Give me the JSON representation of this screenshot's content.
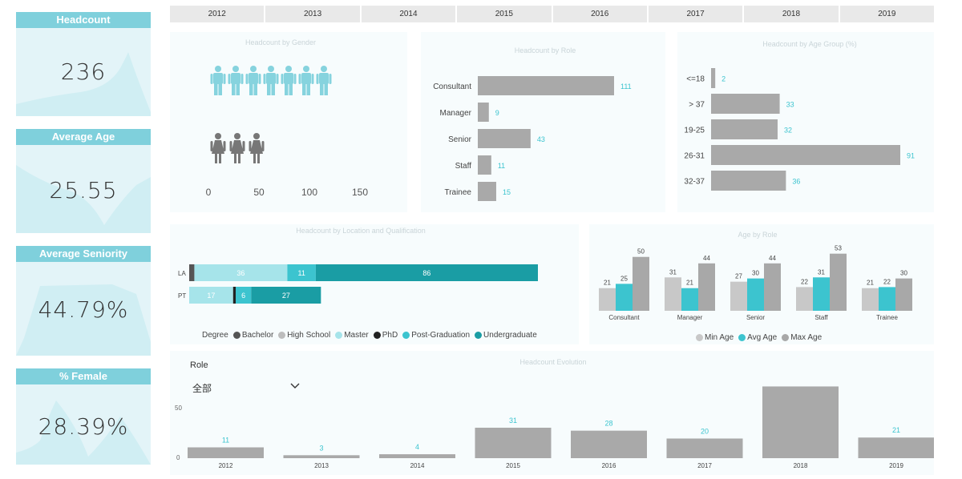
{
  "kpis": [
    {
      "title": "Headcount",
      "value": "236"
    },
    {
      "title": "Average Age",
      "value": "25.55"
    },
    {
      "title": "Average Seniority",
      "value": "44.79%"
    },
    {
      "title": "% Female",
      "value": "28.39%"
    }
  ],
  "year_slicer": [
    "2012",
    "2013",
    "2014",
    "2015",
    "2016",
    "2017",
    "2018",
    "2019"
  ],
  "gender_chart": {
    "title": "Headcount by Gender",
    "male_icon": "male-person-icon",
    "female_icon": "female-person-icon",
    "axis_ticks": [
      "0",
      "50",
      "100",
      "150"
    ]
  },
  "role_chart": {
    "title": "Headcount by Role",
    "categories": [
      "Consultant",
      "Manager",
      "Senior",
      "Staff",
      "Trainee"
    ],
    "values": [
      111,
      9,
      43,
      11,
      15
    ],
    "labels": [
      "111",
      "9",
      "43",
      "11",
      "15"
    ]
  },
  "age_chart": {
    "title": "Headcount by Age Group (%)",
    "categories": [
      "<=18",
      "> 37",
      "19-25",
      "26-31",
      "32-37"
    ],
    "values": [
      2,
      33,
      32,
      91,
      36
    ],
    "labels": [
      "2",
      "33",
      "32",
      "91",
      "36"
    ]
  },
  "location_chart": {
    "title": "Headcount by Location and Qualification",
    "rows": [
      {
        "name": "LA",
        "segments": [
          {
            "degree": "Bachelor",
            "value": 2,
            "label": ""
          },
          {
            "degree": "Master",
            "value": 36,
            "label": "36"
          },
          {
            "degree": "Post-Graduation",
            "value": 11,
            "label": "11"
          },
          {
            "degree": "Undergraduate",
            "value": 86,
            "label": "86"
          }
        ]
      },
      {
        "name": "PT",
        "segments": [
          {
            "degree": "Master",
            "value": 17,
            "label": "17"
          },
          {
            "degree": "PhD",
            "value": 1,
            "label": ""
          },
          {
            "degree": "Post-Graduation",
            "value": 6,
            "label": "6"
          },
          {
            "degree": "Undergraduate",
            "value": 27,
            "label": "27"
          }
        ]
      }
    ],
    "legend_title": "Degree",
    "legend": [
      {
        "name": "Bachelor",
        "color": "#555555"
      },
      {
        "name": "High School",
        "color": "#bdbdbd"
      },
      {
        "name": "Master",
        "color": "#a6e4ea"
      },
      {
        "name": "PhD",
        "color": "#222222"
      },
      {
        "name": "Post-Graduation",
        "color": "#3cc4cf"
      },
      {
        "name": "Undergraduate",
        "color": "#1a9da4"
      }
    ]
  },
  "age_role_chart": {
    "title": "Age by Role",
    "categories": [
      "Consultant",
      "Manager",
      "Senior",
      "Staff",
      "Trainee"
    ],
    "series": [
      {
        "name": "Min Age",
        "color": "#c8c8c8",
        "values": [
          21,
          31,
          27,
          22,
          21
        ]
      },
      {
        "name": "Avg Age",
        "color": "#3cc4cf",
        "values": [
          25,
          21,
          30,
          31,
          22
        ]
      },
      {
        "name": "Max Age",
        "color": "#a8a8a8",
        "values": [
          50,
          44,
          44,
          53,
          30
        ]
      }
    ],
    "max": 55
  },
  "role_slicer": {
    "label": "Role",
    "value": "全部"
  },
  "history_chart": {
    "title": "Headcount Evolution",
    "categories": [
      "2012",
      "2013",
      "2014",
      "2015",
      "2016",
      "2017",
      "2018",
      "2019"
    ],
    "values": [
      11,
      3,
      4,
      31,
      28,
      20,
      73,
      21
    ],
    "labels": [
      "11",
      "3",
      "4",
      "31",
      "28",
      "20",
      "",
      "21"
    ],
    "y_ticks": [
      "50",
      "0"
    ],
    "max": 75
  },
  "colors": {
    "teal": "#3cc4cf",
    "light_teal": "#a6e4ea",
    "dark_teal": "#1a9da4",
    "bar_gray": "#a9a9a9",
    "kpi_header": "#7fd0dc"
  }
}
